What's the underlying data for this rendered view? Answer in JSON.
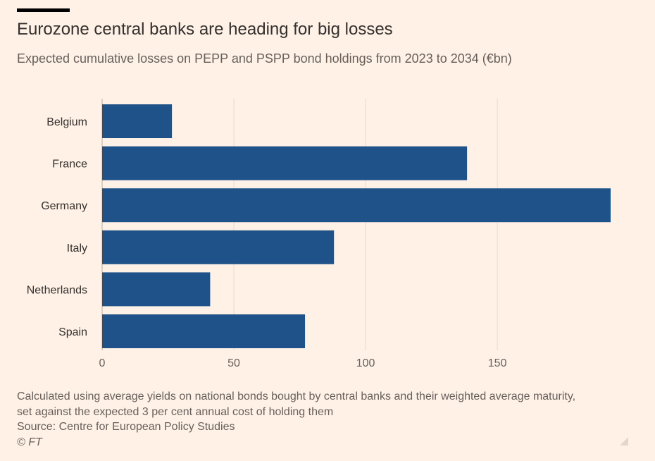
{
  "header": {
    "title": "Eurozone central banks are heading for big losses",
    "subtitle": "Expected cumulative losses on PEPP and PSPP bond holdings from 2023 to 2034 (€bn)"
  },
  "footer": {
    "note_line1": "Calculated using average yields on national bonds bought by central banks and their weighted average maturity,",
    "note_line2": "set against the expected 3 per cent annual cost of holding them",
    "source": "Source: Centre for European Policy Studies",
    "credit": "© FT"
  },
  "colors": {
    "background": "#FFF1E5",
    "bar": "#1F5289",
    "gridline": "#E6D9CE",
    "text": "#33302E",
    "muted_text": "#66605C"
  },
  "chart_data": {
    "type": "bar",
    "orientation": "horizontal",
    "title": "Eurozone central banks are heading for big losses",
    "subtitle": "Expected cumulative losses on PEPP and PSPP bond holdings from 2023 to 2034 (€bn)",
    "categories": [
      "Belgium",
      "France",
      "Germany",
      "Italy",
      "Netherlands",
      "Spain"
    ],
    "values": [
      26.5,
      138.5,
      193,
      88,
      41,
      77
    ],
    "xlim": [
      0,
      193
    ],
    "xticks": [
      0,
      50,
      100,
      150
    ],
    "xticklabels": [
      "0",
      "50",
      "100",
      "150"
    ],
    "xlabel": "",
    "ylabel": "",
    "grid": true,
    "legend": false
  }
}
